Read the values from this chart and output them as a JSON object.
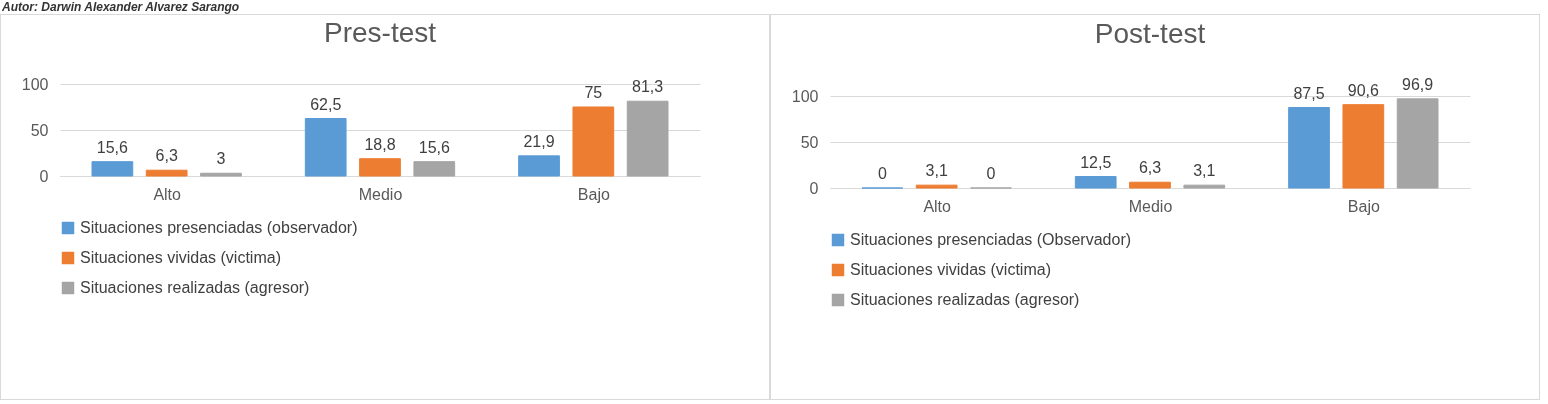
{
  "chart_data": [
    {
      "type": "bar",
      "title": "Pres-test",
      "annotations": [
        "Autor: Darwin Alexander Alvarez Sarango"
      ],
      "categories": [
        "Alto",
        "Medio",
        "Bajo"
      ],
      "series": [
        {
          "name": "Situaciones presenciadas (observador)",
          "color": "#5b9bd5",
          "values": [
            15.6,
            62.5,
            21.9
          ],
          "value_labels": [
            "15,6",
            "62,5",
            "21,9"
          ]
        },
        {
          "name": "Situaciones vividas (victima)",
          "color": "#ed7d31",
          "values": [
            6.3,
            18.8,
            75
          ],
          "value_labels": [
            "6,3",
            "18,8",
            "75"
          ]
        },
        {
          "name": "Situaciones realizadas (agresor)",
          "color": "#a5a5a5",
          "values": [
            3,
            15.6,
            81.3
          ],
          "value_labels": [
            "3",
            "15,6",
            "81,3"
          ]
        }
      ],
      "ylim": [
        0,
        100
      ],
      "yticks": [
        0,
        50,
        100
      ],
      "grid": "y",
      "legend": "bottom"
    },
    {
      "type": "bar",
      "title": "Post-test",
      "categories": [
        "Alto",
        "Medio",
        "Bajo"
      ],
      "series": [
        {
          "name": "Situaciones presenciadas (Observador)",
          "color": "#5b9bd5",
          "values": [
            0,
            12.5,
            87.5
          ],
          "value_labels": [
            "0",
            "12,5",
            "87,5"
          ]
        },
        {
          "name": "Situaciones vividas (victima)",
          "color": "#ed7d31",
          "values": [
            3.1,
            6.3,
            90.6
          ],
          "value_labels": [
            "3,1",
            "6,3",
            "90,6"
          ]
        },
        {
          "name": "Situaciones realizadas (agresor)",
          "color": "#a5a5a5",
          "values": [
            0,
            3.1,
            96.9
          ],
          "value_labels": [
            "0",
            "3,1",
            "96,9"
          ]
        }
      ],
      "ylim": [
        0,
        100
      ],
      "yticks": [
        0,
        50,
        100
      ],
      "grid": "y",
      "legend": "bottom"
    }
  ]
}
